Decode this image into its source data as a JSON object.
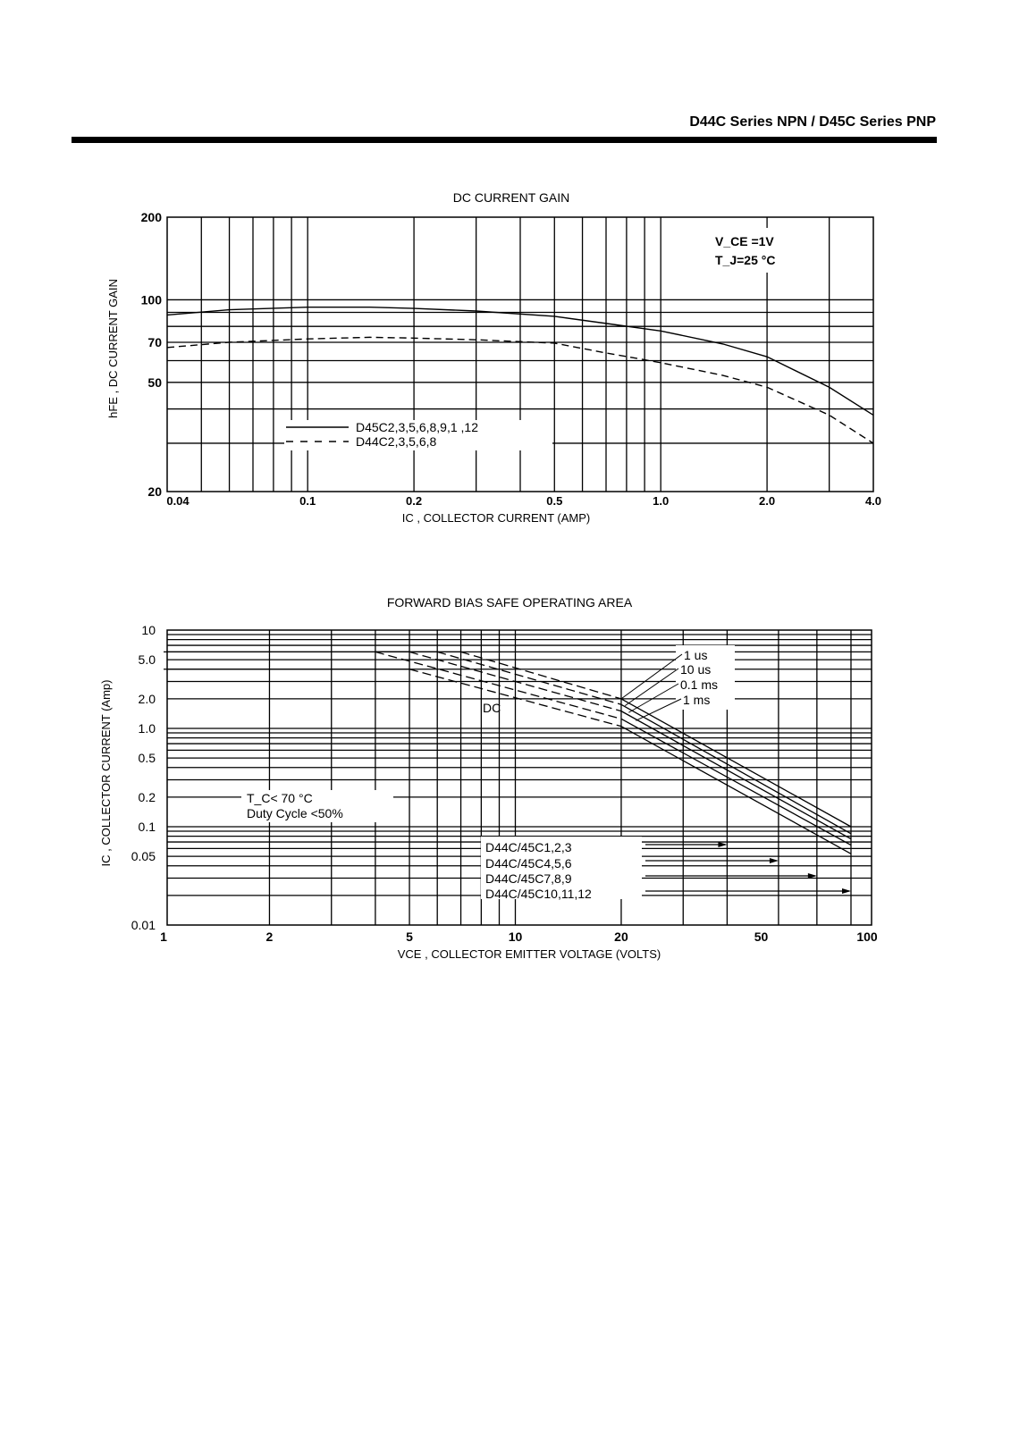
{
  "header": {
    "title": "D44C Series NPN / D45C Series PNP"
  },
  "chart_data": [
    {
      "type": "line",
      "title": "DC CURRENT GAIN",
      "xlabel": "I_C , COLLECTOR CURRENT (AMP)",
      "ylabel": "h_FE , DC CURRENT GAIN",
      "xscale": "log",
      "yscale": "log",
      "xlim": [
        0.04,
        4.0
      ],
      "ylim": [
        20,
        200
      ],
      "xticks": [
        0.04,
        0.1,
        0.2,
        0.5,
        1.0,
        2.0,
        4.0
      ],
      "xtick_labels": [
        "0.04",
        "0.1",
        "0.2",
        "0.5",
        "1.0",
        "2.0",
        "4.0"
      ],
      "yticks": [
        20,
        50,
        70,
        100,
        200
      ],
      "ytick_labels": [
        "20",
        "50",
        "70",
        "100",
        "200"
      ],
      "grid": true,
      "annotations": [
        "V_CE =1V",
        "T_J=25 °C"
      ],
      "series": [
        {
          "name": "D45C2,3,5,6,8,9,1 ,12",
          "style": "solid",
          "x": [
            0.04,
            0.06,
            0.1,
            0.15,
            0.2,
            0.3,
            0.5,
            0.7,
            1.0,
            1.5,
            2.0,
            3.0,
            4.0
          ],
          "y": [
            88,
            92,
            94,
            94,
            93,
            91,
            87,
            82,
            77,
            69,
            62,
            48,
            38
          ]
        },
        {
          "name": "D44C2,3,5,6,8",
          "style": "dashed",
          "x": [
            0.04,
            0.06,
            0.1,
            0.15,
            0.2,
            0.3,
            0.5,
            0.7,
            1.0,
            1.5,
            2.0,
            3.0,
            4.0
          ],
          "y": [
            67,
            70,
            72,
            73,
            72.5,
            71.5,
            69.5,
            64,
            59,
            53,
            48,
            38,
            30
          ]
        }
      ]
    },
    {
      "type": "line",
      "title": "FORWARD BIAS  SAFE OPERATING AREA",
      "xlabel": "V_CE , COLLECTOR EMITTER VOLTAGE (VOLTS)",
      "ylabel": "I_C , COLLECTOR CURRENT (Amp)",
      "xscale": "log",
      "yscale": "log",
      "xlim": [
        1,
        100
      ],
      "ylim": [
        0.01,
        10
      ],
      "xticks": [
        1,
        2,
        5,
        10,
        20,
        50,
        100
      ],
      "xtick_labels": [
        "1",
        "2",
        "5",
        "10",
        "20",
        "50",
        "100"
      ],
      "yticks": [
        0.01,
        0.05,
        0.1,
        0.2,
        0.5,
        1.0,
        2.0,
        5.0,
        10
      ],
      "ytick_labels": [
        "0.01",
        "0.05",
        "0.1",
        "0.2",
        "0.5",
        "1.0",
        "2.0",
        "5.0",
        "10"
      ],
      "grid": true,
      "annotations": [
        "T_C< 70 °C",
        "Duty Cycle <50%",
        "DC"
      ],
      "series": [
        {
          "name": "1 us",
          "x": [
            4,
            7,
            20,
            90
          ],
          "y": [
            6,
            6,
            2.0,
            0.1
          ]
        },
        {
          "name": "10 us",
          "x": [
            4,
            6,
            20,
            90
          ],
          "y": [
            6,
            6,
            1.75,
            0.085
          ]
        },
        {
          "name": "0.1 ms",
          "x": [
            4,
            5,
            20,
            90
          ],
          "y": [
            6,
            6,
            1.5,
            0.075
          ]
        },
        {
          "name": "1 ms",
          "x": [
            1,
            4,
            20,
            90
          ],
          "y": [
            6,
            6,
            1.25,
            0.065
          ]
        },
        {
          "name": "DC",
          "x": [
            1,
            5,
            20,
            90
          ],
          "y": [
            4,
            4,
            1.05,
            0.053
          ]
        }
      ],
      "device_limits": [
        {
          "label": "D44C/45C1,2,3",
          "vce_max": 40
        },
        {
          "label": "D44C/45C4,5,6",
          "vce_max": 56
        },
        {
          "label": "D44C/45C7,8,9",
          "vce_max": 72
        },
        {
          "label": "D44C/45C10,11,12",
          "vce_max": 90
        }
      ]
    }
  ]
}
